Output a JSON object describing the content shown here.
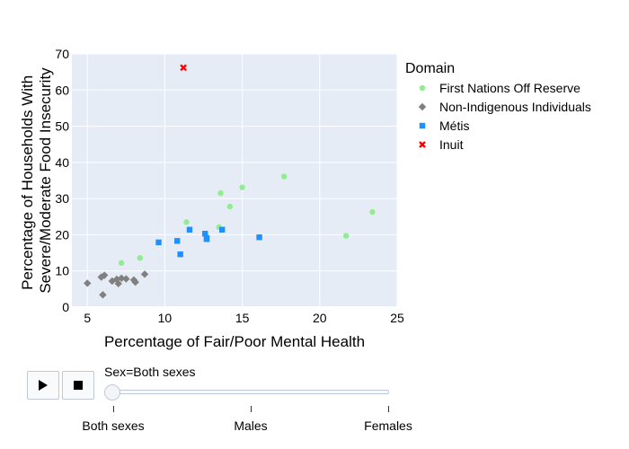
{
  "chart_data": {
    "type": "scatter",
    "title": "",
    "xlabel": "Percentage of Fair/Poor Mental Health",
    "ylabel": "Percentage of Households With Severe/Moderate Food Insecurity",
    "ylabel_lines": [
      "Percentage of Households With",
      "Severe/Moderate Food Insecurity"
    ],
    "xlim": [
      4,
      25
    ],
    "ylim": [
      0,
      70
    ],
    "xticks": [
      5,
      10,
      15,
      20,
      25
    ],
    "yticks": [
      0,
      10,
      20,
      30,
      40,
      50,
      60,
      70
    ],
    "grid": true,
    "legend_title": "Domain",
    "legend_position": "right",
    "series": [
      {
        "name": "First Nations Off Reserve",
        "marker": "circle",
        "color": "#90ee90",
        "points": [
          [
            7.2,
            12.2
          ],
          [
            8.4,
            13.6
          ],
          [
            11.4,
            23.5
          ],
          [
            13.5,
            22.1
          ],
          [
            13.6,
            31.5
          ],
          [
            14.2,
            27.8
          ],
          [
            15.0,
            33.1
          ],
          [
            17.7,
            36.1
          ],
          [
            21.7,
            19.7
          ],
          [
            23.4,
            26.3
          ]
        ]
      },
      {
        "name": "Non-Indigenous Individuals",
        "marker": "diamond",
        "color": "#808080",
        "points": [
          [
            5.0,
            6.6
          ],
          [
            5.9,
            8.3
          ],
          [
            6.0,
            3.4
          ],
          [
            6.1,
            8.8
          ],
          [
            6.6,
            7.2
          ],
          [
            6.9,
            7.7
          ],
          [
            7.0,
            6.5
          ],
          [
            7.2,
            8.0
          ],
          [
            7.5,
            7.8
          ],
          [
            8.0,
            7.5
          ],
          [
            8.1,
            6.9
          ],
          [
            8.7,
            9.1
          ]
        ]
      },
      {
        "name": "Métis",
        "marker": "square",
        "color": "#1e90ff",
        "points": [
          [
            9.6,
            17.9
          ],
          [
            10.8,
            18.3
          ],
          [
            11.0,
            14.6
          ],
          [
            11.6,
            21.4
          ],
          [
            12.6,
            20.3
          ],
          [
            12.7,
            19.1
          ],
          [
            12.7,
            18.8
          ],
          [
            13.7,
            21.4
          ],
          [
            16.1,
            19.3
          ]
        ]
      },
      {
        "name": "Inuit",
        "marker": "x",
        "color": "#ff0000",
        "points": [
          [
            11.2,
            66.2
          ]
        ]
      }
    ]
  },
  "controls": {
    "play_icon": "play-icon",
    "stop_icon": "stop-icon",
    "slider_label": "Sex=Both sexes",
    "steps": [
      "Both sexes",
      "Males",
      "Females"
    ],
    "selected_step": 0
  }
}
